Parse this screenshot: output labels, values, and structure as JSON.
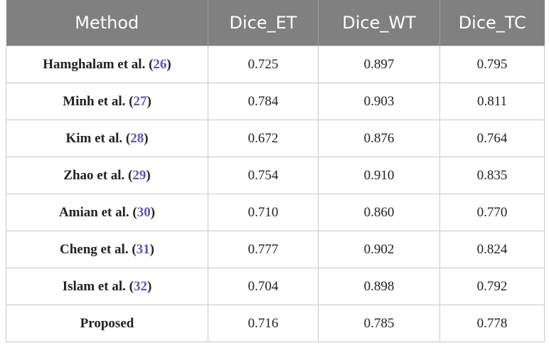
{
  "table": {
    "header": [
      "Method",
      "Dice_ET",
      "Dice_WT",
      "Dice_TC"
    ],
    "rows": [
      {
        "method": [
          "Hamghalam et al. (",
          "26",
          ")"
        ],
        "values": [
          "0.725",
          "0.897",
          "0.795"
        ]
      },
      {
        "method": [
          "Minh et al. (",
          "27",
          ")"
        ],
        "values": [
          "0.784",
          "0.903",
          "0.811"
        ]
      },
      {
        "method": [
          "Kim et al. (",
          "28",
          ")"
        ],
        "values": [
          "0.672",
          "0.876",
          "0.764"
        ]
      },
      {
        "method": [
          "Zhao et al. (",
          "29",
          ")"
        ],
        "values": [
          "0.754",
          "0.910",
          "0.835"
        ]
      },
      {
        "method": [
          "Amian et al. (",
          "30",
          ")"
        ],
        "values": [
          "0.710",
          "0.860",
          "0.770"
        ]
      },
      {
        "method": [
          "Cheng et al. (",
          "31",
          ")"
        ],
        "values": [
          "0.777",
          "0.902",
          "0.824"
        ]
      },
      {
        "method": [
          "Islam et al. (",
          "32",
          ")"
        ],
        "values": [
          "0.704",
          "0.898",
          "0.792"
        ]
      },
      {
        "method": [
          "Proposed"
        ],
        "values": [
          "0.716",
          "0.785",
          "0.778"
        ]
      }
    ]
  }
}
